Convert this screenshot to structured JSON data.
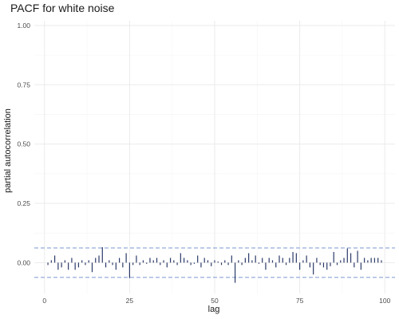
{
  "chart_data": {
    "type": "bar",
    "title": "PACF for white noise",
    "xlabel": "lag",
    "ylabel": "partial autocorrelation",
    "xlim": [
      -3,
      103
    ],
    "ylim": [
      -0.13,
      1.02
    ],
    "x_ticks": [
      0,
      25,
      50,
      75,
      100
    ],
    "x_tick_labels": [
      "0",
      "25",
      "50",
      "75",
      "100"
    ],
    "y_ticks": [
      0,
      0.25,
      0.5,
      0.75,
      1
    ],
    "y_tick_labels": [
      "0.00",
      "0.25",
      "0.50",
      "0.75",
      "1.00"
    ],
    "grid": true,
    "confidence_bound": 0.062,
    "colors": {
      "bar": "#2b3a67",
      "ci_line": "#8aa3d9",
      "grid_major": "#ebebeb",
      "grid_minor": "#f5f5f5"
    },
    "lags": [
      1,
      2,
      3,
      4,
      5,
      6,
      7,
      8,
      9,
      10,
      11,
      12,
      13,
      14,
      15,
      16,
      17,
      18,
      19,
      20,
      21,
      22,
      23,
      24,
      25,
      26,
      27,
      28,
      29,
      30,
      31,
      32,
      33,
      34,
      35,
      36,
      37,
      38,
      39,
      40,
      41,
      42,
      43,
      44,
      45,
      46,
      47,
      48,
      49,
      50,
      51,
      52,
      53,
      54,
      55,
      56,
      57,
      58,
      59,
      60,
      61,
      62,
      63,
      64,
      65,
      66,
      67,
      68,
      69,
      70,
      71,
      72,
      73,
      74,
      75,
      76,
      77,
      78,
      79,
      80,
      81,
      82,
      83,
      84,
      85,
      86,
      87,
      88,
      89,
      90,
      91,
      92,
      93,
      94,
      95,
      96,
      97,
      98,
      99
    ],
    "values": [
      -0.01,
      0.01,
      0.03,
      -0.03,
      -0.02,
      0.01,
      -0.03,
      0.02,
      -0.03,
      -0.02,
      0.01,
      -0.01,
      0.01,
      -0.04,
      0.02,
      0.03,
      0.065,
      -0.02,
      0.01,
      -0.01,
      -0.03,
      0.02,
      -0.02,
      0.04,
      -0.065,
      -0.01,
      0.03,
      -0.01,
      0.01,
      -0.005,
      0.02,
      0.01,
      0.02,
      -0.01,
      0.01,
      -0.02,
      0.02,
      0.01,
      -0.01,
      0.04,
      0.02,
      0.01,
      -0.01,
      -0.005,
      0.03,
      -0.02,
      0.02,
      0.01,
      -0.015,
      0.01,
      0.005,
      -0.01,
      0.01,
      -0.01,
      0.03,
      -0.085,
      0.01,
      -0.01,
      0.02,
      0.04,
      0.01,
      0.03,
      -0.005,
      0.02,
      -0.03,
      0.02,
      0.01,
      -0.02,
      0.03,
      0.02,
      -0.01,
      0.02,
      0.045,
      0.04,
      -0.03,
      0.01,
      0.03,
      -0.02,
      -0.05,
      0.02,
      -0.01,
      -0.02,
      -0.03,
      -0.015,
      0.045,
      -0.01,
      0.01,
      0.02,
      0.06,
      0.04,
      -0.02,
      0.05,
      -0.03,
      0.02,
      0.01,
      0.02,
      0.02,
      0.02,
      0.01
    ]
  }
}
